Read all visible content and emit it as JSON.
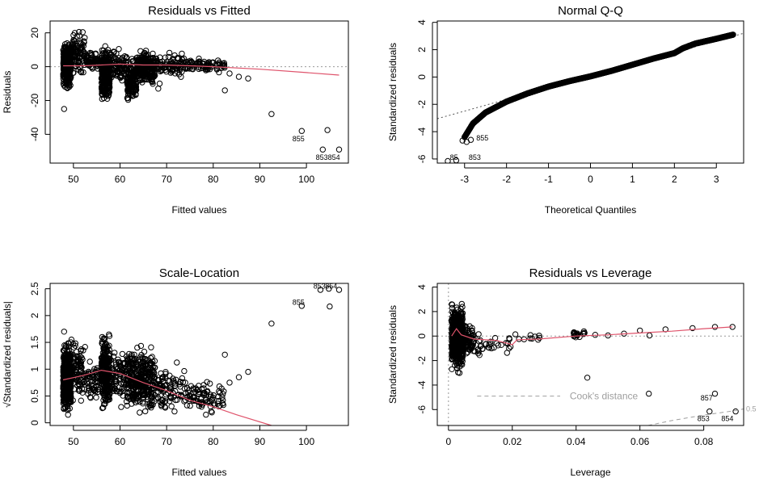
{
  "colors": {
    "smooth": "#df536b",
    "reference": "#999999",
    "points": "#000000",
    "cooks": "#9e9e9e"
  },
  "chart_data": [
    {
      "type": "scatter",
      "title": "Residuals vs Fitted",
      "xlabel": "Fitted values",
      "ylabel": "Residuals",
      "xlim": [
        45,
        109
      ],
      "ylim": [
        -57,
        27
      ],
      "xticks": [
        50,
        60,
        70,
        80,
        90,
        100
      ],
      "yticks": [
        -40,
        -20,
        0,
        20
      ],
      "hline": 0,
      "clusters": [
        {
          "x": [
            47.8,
            49.5
          ],
          "y": [
            -15,
            17
          ],
          "n": 380
        },
        {
          "x": [
            49.5,
            52.5
          ],
          "y": [
            -8,
            24
          ],
          "n": 90
        },
        {
          "x": [
            52.5,
            55.5
          ],
          "y": [
            -3,
            10
          ],
          "n": 60
        },
        {
          "x": [
            56.0,
            57.8
          ],
          "y": [
            -27,
            15
          ],
          "n": 260
        },
        {
          "x": [
            57.8,
            61.5
          ],
          "y": [
            -12,
            12
          ],
          "n": 90
        },
        {
          "x": [
            61.5,
            63.5
          ],
          "y": [
            -24,
            7
          ],
          "n": 140
        },
        {
          "x": [
            63.5,
            67.5
          ],
          "y": [
            -14,
            13
          ],
          "n": 210
        },
        {
          "x": [
            67.5,
            74.0
          ],
          "y": [
            -8,
            10
          ],
          "n": 90
        },
        {
          "x": [
            74.0,
            82.5
          ],
          "y": [
            -4,
            6
          ],
          "n": 90
        }
      ],
      "points": [
        [
          48,
          -25
        ],
        [
          68.5,
          -10
        ],
        [
          68.2,
          -13
        ],
        [
          83.5,
          -4
        ],
        [
          85.5,
          -6
        ],
        [
          87.5,
          -7
        ],
        [
          82.5,
          -14
        ],
        [
          92.5,
          -28
        ],
        [
          99,
          -38
        ],
        [
          104.5,
          -37.5
        ],
        [
          103.5,
          -49
        ],
        [
          107,
          -49
        ]
      ],
      "smooth": [
        [
          47.8,
          0.5
        ],
        [
          52,
          0.5
        ],
        [
          56,
          1
        ],
        [
          60,
          1.5
        ],
        [
          65,
          1
        ],
        [
          70,
          1
        ],
        [
          75,
          0.5
        ],
        [
          80,
          0
        ],
        [
          90,
          -1.5
        ],
        [
          100,
          -3.5
        ],
        [
          107,
          -5
        ]
      ],
      "labels": [
        {
          "text": "855",
          "x": 97,
          "y": -44
        },
        {
          "text": "853",
          "x": 102,
          "y": -55
        },
        {
          "text": "854",
          "x": 104.6,
          "y": -55
        }
      ]
    },
    {
      "type": "scatter",
      "title": "Normal Q-Q",
      "xlabel": "Theoretical Quantiles",
      "ylabel": "Standardized residuals",
      "xlim": [
        -3.65,
        3.65
      ],
      "ylim": [
        -6.3,
        4.1
      ],
      "xticks": [
        -3,
        -2,
        -1,
        0,
        1,
        2,
        3
      ],
      "yticks": [
        -6,
        -4,
        -2,
        0,
        2,
        4
      ],
      "qq_curve": [
        [
          -3.0,
          -4.4
        ],
        [
          -2.8,
          -3.4
        ],
        [
          -2.5,
          -2.6
        ],
        [
          -2.0,
          -1.8
        ],
        [
          -1.5,
          -1.2
        ],
        [
          -1.0,
          -0.7
        ],
        [
          -0.5,
          -0.3
        ],
        [
          0,
          0.05
        ],
        [
          0.5,
          0.45
        ],
        [
          1.0,
          0.9
        ],
        [
          1.5,
          1.35
        ],
        [
          2.0,
          1.75
        ],
        [
          2.2,
          2.1
        ],
        [
          2.5,
          2.45
        ],
        [
          3.0,
          2.8
        ],
        [
          3.4,
          3.1
        ]
      ],
      "n": 1200,
      "points": [
        [
          -3.05,
          -4.65
        ],
        [
          -2.95,
          -4.75
        ],
        [
          -2.85,
          -4.6
        ],
        [
          -3.4,
          -6.15
        ],
        [
          -3.2,
          -6.1
        ]
      ],
      "reference_line": [
        [
          -3.65,
          -3.05
        ],
        [
          3.65,
          3.2
        ]
      ],
      "labels": [
        {
          "text": "855",
          "x": -2.72,
          "y": -4.65
        },
        {
          "text": "85",
          "x": -3.35,
          "y": -6.05
        },
        {
          "text": "853",
          "x": -2.9,
          "y": -6.05
        }
      ]
    },
    {
      "type": "scatter",
      "title": "Scale-Location",
      "xlabel": "Fitted values",
      "ylabel": "√Standardized residuals|",
      "xlim": [
        45,
        109
      ],
      "ylim": [
        -0.05,
        2.6
      ],
      "xticks": [
        50,
        60,
        70,
        80,
        90,
        100
      ],
      "yticks": [
        0.0,
        0.5,
        1.0,
        1.5,
        2.0,
        2.5
      ],
      "clusters": [
        {
          "x": [
            47.8,
            49.5
          ],
          "y": [
            0.05,
            1.65
          ],
          "n": 380
        },
        {
          "x": [
            49.5,
            52.5
          ],
          "y": [
            0.2,
            1.7
          ],
          "n": 90
        },
        {
          "x": [
            52.5,
            55.5
          ],
          "y": [
            0.3,
            1.2
          ],
          "n": 60
        },
        {
          "x": [
            56.0,
            57.8
          ],
          "y": [
            0.1,
            1.8
          ],
          "n": 260
        },
        {
          "x": [
            57.8,
            61.5
          ],
          "y": [
            0.2,
            1.55
          ],
          "n": 90
        },
        {
          "x": [
            61.5,
            67.5
          ],
          "y": [
            0.05,
            1.55
          ],
          "n": 350
        },
        {
          "x": [
            67.5,
            74.0
          ],
          "y": [
            0.05,
            1.2
          ],
          "n": 90
        },
        {
          "x": [
            74.0,
            82.5
          ],
          "y": [
            0.1,
            0.85
          ],
          "n": 90
        }
      ],
      "points": [
        [
          48,
          1.7
        ],
        [
          83.5,
          0.75
        ],
        [
          85.5,
          0.85
        ],
        [
          87.5,
          0.95
        ],
        [
          82.5,
          1.27
        ],
        [
          92.5,
          1.85
        ],
        [
          99,
          2.18
        ],
        [
          105,
          2.17
        ],
        [
          103,
          2.48
        ],
        [
          104.8,
          2.5
        ],
        [
          107,
          2.48
        ]
      ],
      "smooth": [
        [
          47.8,
          0.8
        ],
        [
          52,
          0.88
        ],
        [
          56,
          0.98
        ],
        [
          60,
          0.92
        ],
        [
          65,
          0.75
        ],
        [
          70,
          0.6
        ],
        [
          75,
          0.42
        ],
        [
          80,
          0.3
        ],
        [
          85,
          0.15
        ],
        [
          92.5,
          -0.05
        ]
      ],
      "labels": [
        {
          "text": "855",
          "x": 97,
          "y": 2.2
        },
        {
          "text": "853",
          "x": 101.5,
          "y": 2.5
        },
        {
          "text": "854",
          "x": 104,
          "y": 2.5
        }
      ]
    },
    {
      "type": "scatter",
      "title": "Residuals vs Leverage",
      "xlabel": "Leverage",
      "ylabel": "Standardized residuals",
      "xlim": [
        -0.0035,
        0.0925
      ],
      "ylim": [
        -7.3,
        4.3
      ],
      "xticks": [
        0.0,
        0.02,
        0.04,
        0.06,
        0.08
      ],
      "yticks": [
        -6,
        -4,
        -2,
        0,
        2,
        4
      ],
      "hline": 0,
      "vline": 0,
      "clusters": [
        {
          "x": [
            0.001,
            0.0045
          ],
          "y": [
            -3.2,
            3.0
          ],
          "n": 520
        },
        {
          "x": [
            0.0045,
            0.008
          ],
          "y": [
            -2.0,
            1.3
          ],
          "n": 80
        },
        {
          "x": [
            0.008,
            0.02
          ],
          "y": [
            -2.0,
            0.6
          ],
          "n": 35
        },
        {
          "x": [
            0.02,
            0.03
          ],
          "y": [
            -0.5,
            0.2
          ],
          "n": 10
        },
        {
          "x": [
            0.039,
            0.043
          ],
          "y": [
            -0.2,
            0.45
          ],
          "n": 20
        }
      ],
      "points": [
        [
          0.0435,
          -3.4
        ],
        [
          0.046,
          0.1
        ],
        [
          0.05,
          0.05
        ],
        [
          0.055,
          0.2
        ],
        [
          0.06,
          0.45
        ],
        [
          0.063,
          0.05
        ],
        [
          0.068,
          0.55
        ],
        [
          0.0765,
          0.65
        ],
        [
          0.0835,
          0.75
        ],
        [
          0.089,
          0.75
        ],
        [
          0.0628,
          -4.7
        ],
        [
          0.0835,
          -4.7
        ],
        [
          0.0818,
          -6.15
        ],
        [
          0.09,
          -6.15
        ]
      ],
      "smooth": [
        [
          0.001,
          0.0
        ],
        [
          0.0025,
          0.6
        ],
        [
          0.004,
          0.1
        ],
        [
          0.008,
          -0.25
        ],
        [
          0.015,
          -0.35
        ],
        [
          0.02,
          -0.7
        ],
        [
          0.0215,
          -0.3
        ],
        [
          0.028,
          -0.25
        ],
        [
          0.04,
          0.0
        ],
        [
          0.05,
          0.1
        ],
        [
          0.06,
          0.25
        ],
        [
          0.07,
          0.4
        ],
        [
          0.08,
          0.6
        ],
        [
          0.089,
          0.75
        ]
      ],
      "cooks_curve": [
        [
          0.0625,
          -7.3
        ],
        [
          0.07,
          -6.9
        ],
        [
          0.08,
          -6.45
        ],
        [
          0.09,
          -6.08
        ],
        [
          0.0925,
          -5.95
        ]
      ],
      "cooks_legend": "Cook's distance",
      "cooks_label": "0.5",
      "labels": [
        {
          "text": "857",
          "x": 0.079,
          "y": -5.25
        },
        {
          "text": "853",
          "x": 0.078,
          "y": -6.95
        },
        {
          "text": "854",
          "x": 0.0855,
          "y": -6.95
        }
      ]
    }
  ]
}
